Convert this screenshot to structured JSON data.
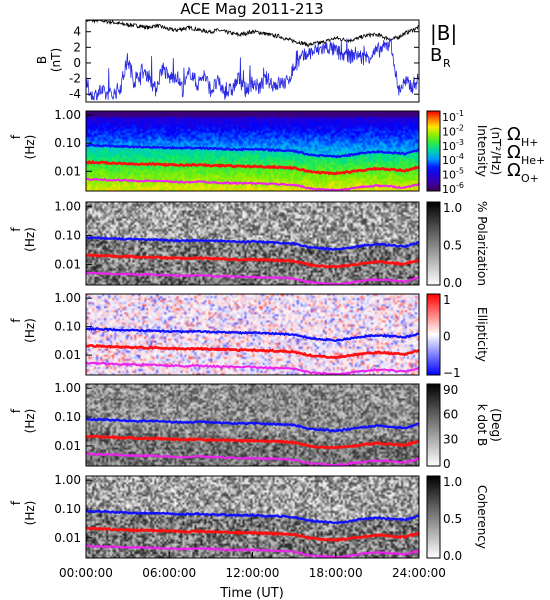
{
  "title": "ACE Mag 2011-213",
  "xlabel": "Time (UT)",
  "xticks": [
    "00:00:00",
    "06:00:00",
    "12:00:00",
    "18:00:00",
    "24:00:00"
  ],
  "colors": {
    "B_total": "#000000",
    "B_R": "#2a2ae0",
    "H": "#1010ff",
    "He": "#ff1010",
    "O": "#ee22ee"
  },
  "chart_data": [
    {
      "type": "line",
      "panel": "B",
      "ylabel": "B",
      "yunit": "(nT)",
      "ylim": [
        -5,
        5.5
      ],
      "yticks": [
        "4",
        "2",
        "0",
        "-2",
        "-4"
      ],
      "legend": [
        "|B|",
        "B",
        "R"
      ],
      "x_hours": [
        0,
        0.5,
        1,
        1.5,
        2,
        2.5,
        3,
        3.5,
        4,
        4.5,
        5,
        5.5,
        6,
        6.5,
        7,
        7.5,
        8,
        8.5,
        9,
        9.5,
        10,
        10.5,
        11,
        11.5,
        12,
        12.5,
        13,
        13.5,
        14,
        14.5,
        15,
        15.5,
        16,
        16.5,
        17,
        17.5,
        18,
        18.5,
        19,
        19.5,
        20,
        20.5,
        21,
        21.5,
        22,
        22.5,
        23,
        23.5,
        24
      ],
      "series": [
        {
          "name": "|B|",
          "values": [
            5.5,
            5.4,
            5.5,
            5.3,
            5.2,
            5.0,
            4.9,
            4.8,
            4.7,
            4.5,
            4.8,
            4.6,
            4.3,
            4.2,
            4.4,
            4.5,
            4.3,
            4.1,
            4.0,
            4.2,
            4.0,
            3.8,
            3.6,
            3.8,
            4.0,
            3.9,
            3.7,
            3.5,
            3.4,
            3.0,
            2.8,
            2.6,
            2.3,
            2.5,
            2.6,
            2.9,
            3.2,
            3.0,
            2.9,
            3.1,
            3.4,
            3.6,
            3.6,
            3.3,
            3.0,
            3.3,
            3.8,
            4.2,
            4.6
          ]
        },
        {
          "name": "B_R",
          "values": [
            -2.5,
            -4.5,
            -3.5,
            -4.2,
            -4.0,
            -3.0,
            0.5,
            -2.5,
            -1.0,
            -1.5,
            -3.5,
            -0.5,
            -2.0,
            -1.5,
            -3.5,
            -1.0,
            -2.8,
            -1.5,
            -3.5,
            -2.5,
            -3.8,
            -3.5,
            -2.0,
            -3.5,
            -2.5,
            -3.2,
            -2.0,
            -2.8,
            -2.6,
            -2.5,
            -0.5,
            0.5,
            1.2,
            1.5,
            1.8,
            2.0,
            1.5,
            1.0,
            0.8,
            1.2,
            0.5,
            1.0,
            1.5,
            2.0,
            2.5,
            -3.5,
            -2.5,
            -3.0,
            -2.0
          ]
        }
      ]
    },
    {
      "type": "heatmap",
      "panel": "intensity",
      "ylabel": "f",
      "yunit": "(Hz)",
      "yscale": "log",
      "ylim": [
        0.002,
        1.4
      ],
      "yticks": [
        "1.00",
        "0.10",
        "0.01"
      ],
      "colorbar": {
        "label": "Intensity",
        "unit": "(nT²/Hz)",
        "ticks": [
          "10",
          "10",
          "10",
          "10",
          "10",
          "10"
        ],
        "tick_exps": [
          "-1",
          "-2",
          "-3",
          "-4",
          "-5",
          "-6"
        ],
        "scale": "rainbow"
      },
      "legend": [
        "Ω",
        "H+",
        "Ω",
        "He+",
        "Ω",
        "O+"
      ]
    },
    {
      "type": "heatmap",
      "panel": "polarization",
      "ylabel": "f",
      "yunit": "(Hz)",
      "yscale": "log",
      "ylim": [
        0.002,
        1.4
      ],
      "yticks": [
        "1.00",
        "0.10",
        "0.01"
      ],
      "colorbar": {
        "label": "% Polarization",
        "ticks": [
          "1.0",
          "0.5",
          "0.0"
        ],
        "scale": "gray"
      }
    },
    {
      "type": "heatmap",
      "panel": "ellipticity",
      "ylabel": "f",
      "yunit": "(Hz)",
      "yscale": "log",
      "ylim": [
        0.002,
        1.4
      ],
      "yticks": [
        "1.00",
        "0.10",
        "0.01"
      ],
      "colorbar": {
        "label": "Ellipticity",
        "ticks": [
          "1",
          "0",
          "−1"
        ],
        "scale": "bwr"
      }
    },
    {
      "type": "heatmap",
      "panel": "kdotb",
      "ylabel": "f",
      "yunit": "(Hz)",
      "yscale": "log",
      "ylim": [
        0.002,
        1.4
      ],
      "yticks": [
        "1.00",
        "0.10",
        "0.01"
      ],
      "colorbar": {
        "label": "k dot B",
        "unit": "(Deg)",
        "ticks": [
          "90",
          "60",
          "30",
          "0"
        ],
        "scale": "gray"
      }
    },
    {
      "type": "heatmap",
      "panel": "coherency",
      "ylabel": "f",
      "yunit": "(Hz)",
      "yscale": "log",
      "ylim": [
        0.002,
        1.4
      ],
      "yticks": [
        "1.00",
        "0.10",
        "0.01"
      ],
      "colorbar": {
        "label": "Coherency",
        "ticks": [
          "1.0",
          "0.5",
          "0.0"
        ],
        "scale": "gray"
      }
    }
  ],
  "gyrofrequency_hz": {
    "x_hours": [
      0,
      1,
      2,
      3,
      4,
      5,
      6,
      7,
      8,
      9,
      10,
      11,
      12,
      13,
      14,
      15,
      16,
      17,
      18,
      19,
      20,
      21,
      22,
      23,
      24
    ],
    "H+": [
      0.084,
      0.082,
      0.078,
      0.075,
      0.073,
      0.072,
      0.068,
      0.066,
      0.068,
      0.065,
      0.063,
      0.06,
      0.061,
      0.058,
      0.056,
      0.052,
      0.04,
      0.036,
      0.033,
      0.038,
      0.045,
      0.05,
      0.046,
      0.042,
      0.058
    ],
    "He+": [
      0.021,
      0.0205,
      0.0195,
      0.019,
      0.018,
      0.018,
      0.017,
      0.0165,
      0.017,
      0.016,
      0.016,
      0.015,
      0.015,
      0.0145,
      0.014,
      0.013,
      0.01,
      0.009,
      0.0085,
      0.0095,
      0.011,
      0.0125,
      0.0115,
      0.0105,
      0.0145
    ],
    "O+": [
      0.0052,
      0.0051,
      0.0049,
      0.0047,
      0.0046,
      0.0045,
      0.0043,
      0.0041,
      0.0043,
      0.0041,
      0.0039,
      0.0038,
      0.0038,
      0.0036,
      0.0035,
      0.0033,
      0.0025,
      0.0023,
      0.0021,
      0.0024,
      0.0028,
      0.0031,
      0.0029,
      0.0026,
      0.0036
    ]
  }
}
